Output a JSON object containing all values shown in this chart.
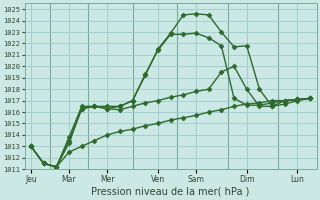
{
  "background_color": "#cce8e4",
  "grid_color": "#99cccc",
  "line_color": "#2d6b2d",
  "line_width": 1.0,
  "marker": "D",
  "marker_size": 2.5,
  "xlabel": "Pression niveau de la mer( hPa )",
  "ylim": [
    1011,
    1025.5
  ],
  "yticks": [
    1011,
    1012,
    1013,
    1014,
    1015,
    1016,
    1017,
    1018,
    1019,
    1020,
    1021,
    1022,
    1023,
    1024,
    1025
  ],
  "day_labels": [
    "Jeu",
    "Mar",
    "Mer",
    "Ven",
    "Sam",
    "Dim",
    "Lun"
  ],
  "day_tick_x": [
    0,
    3,
    6,
    10,
    13,
    17,
    21
  ],
  "day_sep_x": [
    1.5,
    4.5,
    8.0,
    11.5,
    15.5,
    19.5
  ],
  "series": [
    {
      "x": [
        0,
        1,
        2,
        3,
        4,
        5,
        6,
        7,
        8,
        9,
        10,
        11,
        12,
        13,
        14,
        15,
        16,
        17,
        18,
        19,
        20,
        21,
        22
      ],
      "y": [
        1013.0,
        1011.5,
        1011.2,
        1013.8,
        1016.5,
        1016.5,
        1016.5,
        1016.5,
        1017.0,
        1019.2,
        1021.5,
        1022.9,
        1024.5,
        1024.6,
        1024.5,
        1023.0,
        1021.7,
        1021.8,
        1018.0,
        1016.5,
        1017.0,
        1017.1,
        1017.2
      ]
    },
    {
      "x": [
        0,
        1,
        2,
        3,
        4,
        5,
        6,
        7,
        8,
        9,
        10,
        11,
        12,
        13,
        14,
        15,
        16,
        17,
        18,
        19,
        20,
        21,
        22
      ],
      "y": [
        1013.0,
        1011.5,
        1011.2,
        1013.5,
        1016.3,
        1016.5,
        1016.3,
        1016.5,
        1017.0,
        1019.3,
        1021.4,
        1022.8,
        1022.8,
        1022.9,
        1022.5,
        1021.8,
        1017.2,
        1016.6,
        1016.6,
        1016.8,
        1017.0,
        1017.1,
        1017.2
      ]
    },
    {
      "x": [
        0,
        1,
        2,
        3,
        4,
        5,
        6,
        7,
        8,
        9,
        10,
        11,
        12,
        13,
        14,
        15,
        16,
        17,
        18,
        19,
        20,
        21,
        22
      ],
      "y": [
        1013.0,
        1011.5,
        1011.2,
        1013.3,
        1016.3,
        1016.5,
        1016.3,
        1016.2,
        1016.5,
        1016.8,
        1017.0,
        1017.3,
        1017.5,
        1017.8,
        1018.0,
        1019.5,
        1020.0,
        1018.0,
        1016.5,
        1016.5,
        1016.7,
        1017.0,
        1017.2
      ]
    },
    {
      "x": [
        0,
        1,
        2,
        3,
        4,
        5,
        6,
        7,
        8,
        9,
        10,
        11,
        12,
        13,
        14,
        15,
        16,
        17,
        18,
        19,
        20,
        21,
        22
      ],
      "y": [
        1013.0,
        1011.5,
        1011.2,
        1012.5,
        1013.0,
        1013.5,
        1014.0,
        1014.3,
        1014.5,
        1014.8,
        1015.0,
        1015.3,
        1015.5,
        1015.7,
        1016.0,
        1016.2,
        1016.5,
        1016.7,
        1016.8,
        1017.0,
        1017.0,
        1017.1,
        1017.2
      ]
    }
  ]
}
